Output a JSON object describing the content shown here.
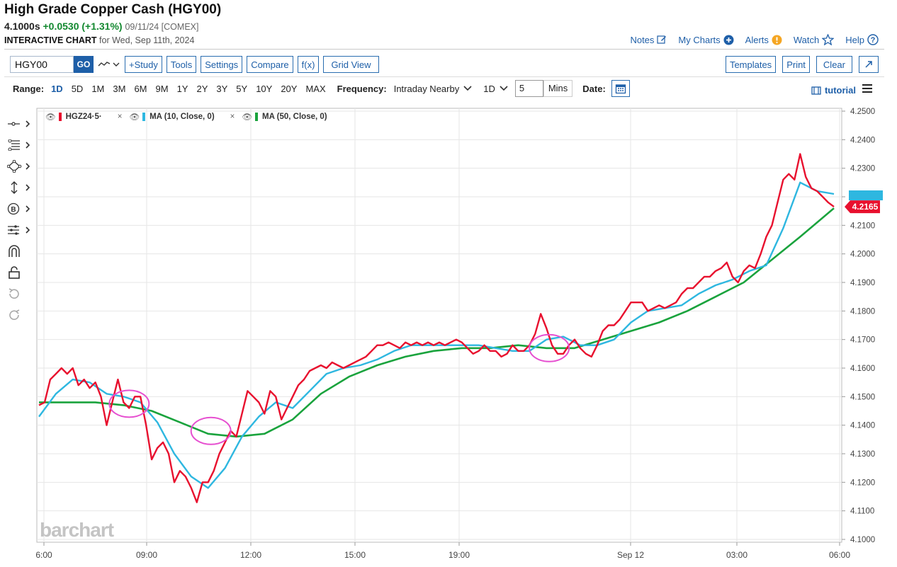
{
  "header": {
    "title": "High Grade Copper Cash (HGY00)",
    "price": "4.1000s",
    "change": "+0.0530 (+1.31%)",
    "meta": "09/11/24 [COMEX]",
    "chart_label": "INTERACTIVE CHART",
    "chart_for": "for Wed, Sep 11th, 2024"
  },
  "toplinks": {
    "notes": "Notes",
    "mycharts": "My Charts",
    "alerts": "Alerts",
    "watch": "Watch",
    "help": "Help"
  },
  "toolbar": {
    "symbol_value": "HGY00",
    "go": "GO",
    "study": "+Study",
    "tools": "Tools",
    "settings": "Settings",
    "compare": "Compare",
    "fx": "f(x)",
    "gridview": "Grid View",
    "templates": "Templates",
    "print": "Print",
    "clear": "Clear"
  },
  "rangebar": {
    "range_label": "Range:",
    "ranges": [
      "1D",
      "5D",
      "1M",
      "3M",
      "6M",
      "9M",
      "1Y",
      "2Y",
      "3Y",
      "5Y",
      "10Y",
      "20Y",
      "MAX"
    ],
    "active_range": "1D",
    "frequency_label": "Frequency:",
    "frequency_value": "Intraday Nearby",
    "period_value": "1D",
    "interval_value": "5",
    "interval_unit": "Mins",
    "date_label": "Date:",
    "tutorial": "tutorial"
  },
  "legend": {
    "series1": "HGZ24·5·",
    "series2": "MA (10, Close, 0)",
    "series3": "MA (50, Close, 0)",
    "close_glyph": "×"
  },
  "colors": {
    "price": "#e8102e",
    "ma10": "#2eb7e0",
    "ma50": "#1aa33d",
    "accent": "#1e5fa8",
    "up": "#12882f",
    "highlight": "#e64fd0"
  },
  "watermark": "barchart",
  "last_price_label": "4.2165",
  "chart_data": {
    "type": "line",
    "x_ticks": [
      "6:00",
      "09:00",
      "12:00",
      "15:00",
      "19:00",
      "Sep 12",
      "03:00",
      "06:00"
    ],
    "y_ticks": [
      "4.2500",
      "4.2400",
      "4.2300",
      "4.2200",
      "4.2100",
      "4.2000",
      "4.1900",
      "4.1800",
      "4.1700",
      "4.1600",
      "4.1500",
      "4.1400",
      "4.1300",
      "4.1200",
      "4.1100",
      "4.1000"
    ],
    "ylim": [
      4.1,
      4.25
    ],
    "xlim": [
      0,
      282
    ],
    "series": [
      {
        "name": "HGZ24·5·",
        "x": [
          0,
          2,
          4,
          6,
          8,
          10,
          12,
          14,
          16,
          18,
          20,
          22,
          24,
          26,
          28,
          30,
          32,
          34,
          36,
          38,
          40,
          42,
          44,
          46,
          48,
          50,
          52,
          54,
          56,
          58,
          60,
          62,
          64,
          66,
          68,
          70,
          72,
          74,
          76,
          78,
          80,
          82,
          84,
          86,
          88,
          90,
          92,
          94,
          96,
          98,
          100,
          102,
          104,
          106,
          108,
          110,
          112,
          114,
          116,
          118,
          120,
          122,
          124,
          126,
          128,
          130,
          132,
          134,
          136,
          138,
          140,
          142,
          144,
          146,
          148,
          150,
          152,
          154,
          156,
          158,
          160,
          162,
          164,
          166,
          168,
          170,
          172,
          174,
          176,
          178,
          180,
          182,
          184,
          186,
          188,
          190,
          192,
          194,
          196,
          198,
          200,
          202,
          204,
          206,
          208,
          210,
          212,
          214,
          216,
          218,
          220,
          222,
          224,
          226,
          228,
          230,
          232,
          234,
          236,
          238,
          240,
          242,
          244,
          246,
          248,
          250,
          252,
          254,
          256,
          258,
          260,
          262,
          264,
          266,
          268,
          270,
          272,
          274,
          276,
          278,
          280,
          282
        ],
        "y": [
          4.147,
          4.148,
          4.156,
          4.158,
          4.16,
          4.158,
          4.16,
          4.154,
          4.156,
          4.153,
          4.155,
          4.15,
          4.14,
          4.148,
          4.156,
          4.148,
          4.146,
          4.15,
          4.15,
          4.14,
          4.128,
          4.132,
          4.134,
          4.13,
          4.12,
          4.124,
          4.122,
          4.118,
          4.113,
          4.12,
          4.12,
          4.124,
          4.13,
          4.134,
          4.138,
          4.136,
          4.144,
          4.152,
          4.15,
          4.148,
          4.144,
          4.152,
          4.15,
          4.142,
          4.146,
          4.15,
          4.154,
          4.156,
          4.159,
          4.16,
          4.161,
          4.16,
          4.162,
          4.161,
          4.16,
          4.161,
          4.162,
          4.163,
          4.164,
          4.166,
          4.168,
          4.168,
          4.169,
          4.168,
          4.167,
          4.169,
          4.168,
          4.169,
          4.168,
          4.169,
          4.168,
          4.169,
          4.168,
          4.169,
          4.17,
          4.169,
          4.167,
          4.165,
          4.166,
          4.168,
          4.166,
          4.166,
          4.164,
          4.165,
          4.168,
          4.166,
          4.166,
          4.168,
          4.172,
          4.179,
          4.174,
          4.168,
          4.165,
          4.165,
          4.168,
          4.17,
          4.167,
          4.165,
          4.164,
          4.168,
          4.173,
          4.175,
          4.175,
          4.177,
          4.18,
          4.183,
          4.183,
          4.183,
          4.18,
          4.181,
          4.182,
          4.181,
          4.182,
          4.183,
          4.186,
          4.188,
          4.188,
          4.19,
          4.192,
          4.192,
          4.194,
          4.195,
          4.197,
          4.192,
          4.19,
          4.194,
          4.196,
          4.195,
          4.2,
          4.206,
          4.21,
          4.218,
          4.226,
          4.228,
          4.226,
          4.235,
          4.227,
          4.223,
          4.222,
          4.22,
          4.218,
          4.2165
        ]
      },
      {
        "name": "MA (10, Close, 0)",
        "x": [
          0,
          6,
          12,
          18,
          24,
          30,
          36,
          42,
          48,
          54,
          60,
          66,
          72,
          78,
          84,
          90,
          96,
          102,
          108,
          114,
          120,
          126,
          132,
          138,
          144,
          150,
          156,
          162,
          168,
          174,
          180,
          186,
          192,
          198,
          204,
          210,
          216,
          222,
          228,
          234,
          240,
          246,
          252,
          258,
          264,
          270,
          276,
          282
        ],
        "y": [
          4.143,
          4.151,
          4.156,
          4.155,
          4.151,
          4.15,
          4.148,
          4.141,
          4.13,
          4.122,
          4.118,
          4.125,
          4.136,
          4.143,
          4.148,
          4.146,
          4.152,
          4.158,
          4.16,
          4.161,
          4.163,
          4.166,
          4.168,
          4.168,
          4.168,
          4.168,
          4.168,
          4.167,
          4.166,
          4.166,
          4.17,
          4.171,
          4.168,
          4.168,
          4.17,
          4.176,
          4.18,
          4.181,
          4.182,
          4.186,
          4.189,
          4.191,
          4.194,
          4.196,
          4.209,
          4.225,
          4.222,
          4.221
        ]
      },
      {
        "name": "MA (50, Close, 0)",
        "x": [
          0,
          10,
          20,
          30,
          40,
          50,
          60,
          70,
          80,
          90,
          100,
          110,
          120,
          130,
          140,
          150,
          160,
          170,
          180,
          190,
          200,
          210,
          220,
          230,
          240,
          250,
          260,
          270,
          282
        ],
        "y": [
          4.148,
          4.148,
          4.148,
          4.147,
          4.145,
          4.141,
          4.137,
          4.136,
          4.137,
          4.142,
          4.151,
          4.157,
          4.161,
          4.164,
          4.166,
          4.167,
          4.167,
          4.168,
          4.167,
          4.167,
          4.17,
          4.173,
          4.176,
          4.18,
          4.185,
          4.19,
          4.198,
          4.206,
          4.216
        ]
      }
    ],
    "annotations": [
      {
        "type": "circle",
        "x": 32,
        "y": 4.1475
      },
      {
        "type": "circle",
        "x": 61,
        "y": 4.138
      },
      {
        "type": "circle",
        "x": 181,
        "y": 4.167
      }
    ],
    "grid": true,
    "legend_position": "top-left"
  }
}
